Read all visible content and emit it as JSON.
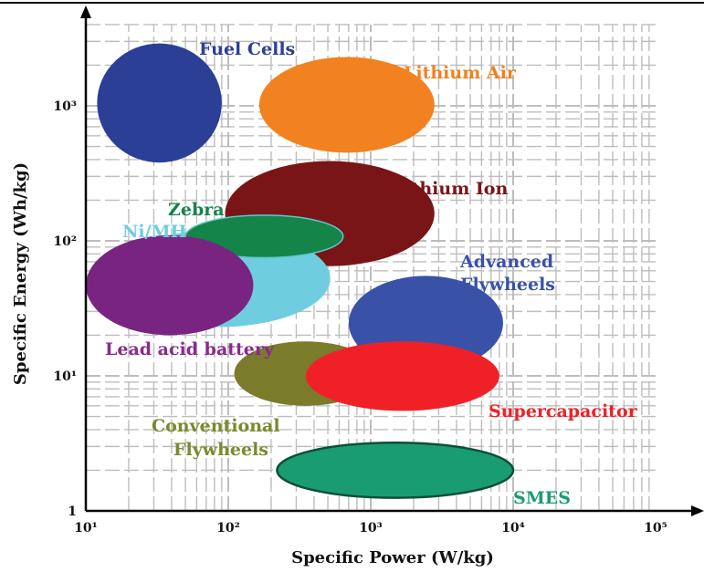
{
  "chart_data": {
    "type": "scatter",
    "title": "",
    "xlabel": "Specific Power (W/kg)",
    "ylabel": "Specific Energy (Wh/kg)",
    "xscale": "log",
    "yscale": "log",
    "xlim": [
      10,
      100000
    ],
    "ylim": [
      1,
      4000
    ],
    "grid": true,
    "legend": "none",
    "x_ticks": [
      {
        "value": 10,
        "label": "10¹"
      },
      {
        "value": 100,
        "label": "10²"
      },
      {
        "value": 1000,
        "label": "10³"
      },
      {
        "value": 10000,
        "label": "10⁴"
      },
      {
        "value": 100000,
        "label": "10⁵"
      }
    ],
    "y_ticks": [
      {
        "value": 1,
        "label": "1"
      },
      {
        "value": 10,
        "label": "10¹"
      },
      {
        "value": 100,
        "label": "10²"
      },
      {
        "value": 1000,
        "label": "10³"
      }
    ],
    "regions": [
      {
        "name": "Fuel Cells",
        "power": [
          12,
          90
        ],
        "energy": [
          380,
          2900
        ],
        "color": "#2b3f96"
      },
      {
        "name": "Lithium Air",
        "power": [
          165,
          2800
        ],
        "energy": [
          450,
          2300
        ],
        "color": "#f2811f"
      },
      {
        "name": "Lithium Ion",
        "power": [
          95,
          2800
        ],
        "energy": [
          65,
          390
        ],
        "color": "#7a1517"
      },
      {
        "name": "Ni/MH",
        "power": [
          14,
          520
        ],
        "energy": [
          23,
          120
        ],
        "color": "#6fcde0"
      },
      {
        "name": "Zebra",
        "power": [
          50,
          640
        ],
        "energy": [
          75,
          155
        ],
        "color": "#148448"
      },
      {
        "name": "Lead acid battery",
        "power": [
          10,
          150
        ],
        "energy": [
          20,
          110
        ],
        "color": "#7a2482"
      },
      {
        "name": "Advanced Flywheels",
        "power": [
          700,
          8500
        ],
        "energy": [
          11,
          55
        ],
        "color": "#3a51a8"
      },
      {
        "name": "Conventional Flywheels",
        "power": [
          110,
          1100
        ],
        "energy": [
          6,
          18
        ],
        "color": "#7a7c2c"
      },
      {
        "name": "Supercapacitor",
        "power": [
          350,
          8000
        ],
        "energy": [
          5.5,
          18
        ],
        "color": "#ef2127"
      },
      {
        "name": "SMES",
        "power": [
          220,
          10000
        ],
        "energy": [
          1.25,
          3.2
        ],
        "color": "#1a9c72"
      }
    ]
  },
  "labels": {
    "fuel_cells": "Fuel Cells",
    "lithium_air": "Lithium Air",
    "lithium_ion": "Lithium Ion",
    "zebra": "Zebra",
    "ni_mh": "Ni/MH",
    "lead_acid": "Lead acid battery",
    "advanced_flywheels_1": "Advanced",
    "advanced_flywheels_2": "Flywheels",
    "conventional_flywheels_1": "Conventional",
    "conventional_flywheels_2": "Flywheels",
    "supercapacitor": "Supercapacitor",
    "smes": "SMES"
  },
  "colors": {
    "fuel_cells_label": "#2b3f96",
    "lithium_air_label": "#f2811f",
    "lithium_ion_label": "#7a1517",
    "zebra_label": "#148448",
    "ni_mh_label": "#6fcde0",
    "lead_acid_label": "#8a2a8c",
    "advanced_flywheels_label": "#3a51a8",
    "conventional_flywheels_label": "#7a8a2c",
    "supercapacitor_label": "#ef2127",
    "smes_label": "#1a9c72",
    "grid": "#bdbdbd"
  }
}
